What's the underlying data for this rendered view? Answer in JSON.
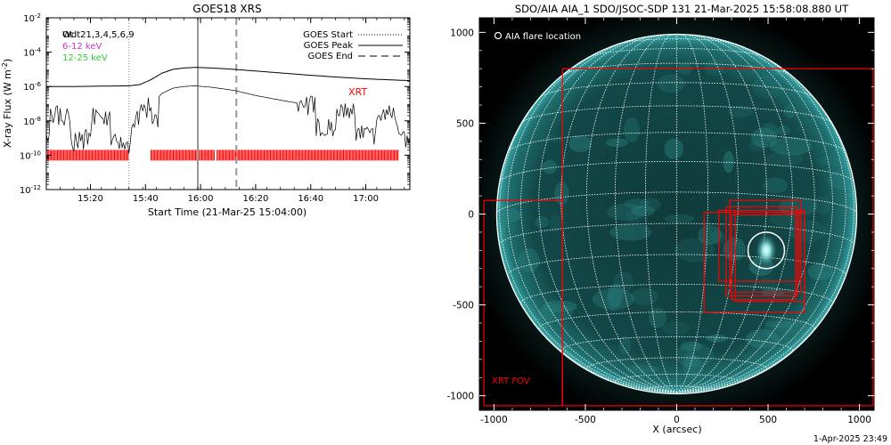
{
  "left_panel": {
    "title": "GOES18 XRS",
    "ylabel": "X-ray Flux (W m",
    "ylabel_sup": "-2",
    "ylabel_tail": ")",
    "xlabel": "Start Time (21-Mar-25 15:04:00)",
    "y_ticks": [
      {
        "base": "10",
        "exp": "-2"
      },
      {
        "base": "10",
        "exp": "-4"
      },
      {
        "base": "10",
        "exp": "-6"
      },
      {
        "base": "10",
        "exp": "-8"
      },
      {
        "base": "10",
        "exp": "-10"
      },
      {
        "base": "10",
        "exp": "-12"
      }
    ],
    "x_ticks": [
      "15:20",
      "15:40",
      "16:00",
      "16:20",
      "16:40",
      "17:00"
    ],
    "legend_left": [
      {
        "label": "Ot",
        "color": "#000000"
      },
      {
        "label": "6-12 keV",
        "color": "#cc33cc"
      },
      {
        "label": "12-25 keV",
        "color": "#33cc33"
      }
    ],
    "legend_overlap": "Wdt21,3,4,5,6,9",
    "legend_right": [
      {
        "label": "GOES Start",
        "style": "dotted"
      },
      {
        "label": "GOES Peak",
        "style": "solid"
      },
      {
        "label": "GOES End",
        "style": "dashed"
      }
    ],
    "xrt_label": "XRT",
    "xrt_color": "#ff0000"
  },
  "right_panel": {
    "title": "SDO/AIA AIA_1 SDO/JSOC-SDP 131 21-Mar-2025 15:58:08.880 UT",
    "legend_label": "AIA flare location",
    "xlabel": "X (arcsec)",
    "x_ticks": [
      "-1000",
      "-500",
      "0",
      "500",
      "1000"
    ],
    "y_ticks": [
      "1000",
      "500",
      "0",
      "-500",
      "-1000"
    ],
    "fov_label": "XRT FOV",
    "fov_color": "#ff0000"
  },
  "footer": {
    "timestamp": "1-Apr-2025 23:49"
  },
  "chart_data": [
    {
      "type": "line",
      "title": "GOES18 XRS",
      "xlabel": "Start Time (21-Mar-25 15:04:00)",
      "ylabel": "X-ray Flux (W m^-2)",
      "yscale": "log",
      "ylim": [
        1e-12,
        0.01
      ],
      "xlim": [
        "15:04",
        "17:16"
      ],
      "series": [
        {
          "name": "",
          "x": [
            "15:04",
            "15:14",
            "15:24",
            "15:34",
            "15:38",
            "15:42",
            "15:46",
            "15:50",
            "15:54",
            "15:58",
            "16:04",
            "16:12",
            "16:20",
            "16:30",
            "16:40",
            "16:50",
            "17:00",
            "17:10",
            "17:16"
          ],
          "values": [
            1e-06,
            1e-06,
            1.05e-06,
            1.1e-06,
            1.3e-06,
            2.5e-06,
            6e-06,
            1e-05,
            1.2e-05,
            1.3e-05,
            1.2e-05,
            1e-05,
            8e-06,
            6e-06,
            4.5e-06,
            3.5e-06,
            2.8e-06,
            2.4e-06,
            2.2e-06
          ]
        },
        {
          "name": "",
          "x": [
            "15:04",
            "15:14",
            "15:24",
            "15:34",
            "15:38",
            "15:42",
            "15:46",
            "15:50",
            "15:54",
            "15:58",
            "16:04",
            "16:12",
            "16:20",
            "16:30",
            "16:40",
            "16:50",
            "17:00",
            "17:10",
            "17:16"
          ],
          "values": [
            3e-08,
            1e-08,
            2e-08,
            5e-09,
            2e-08,
            8e-08,
            4e-07,
            8e-07,
            1e-06,
            1.1e-06,
            9e-07,
            6e-07,
            3e-07,
            1.5e-07,
            8e-08,
            4e-08,
            2.5e-08,
            2e-08,
            1.5e-08
          ]
        }
      ],
      "vertical_lines": [
        {
          "label": "GOES Start",
          "x": "15:34",
          "style": "dotted"
        },
        {
          "label": "GOES Peak",
          "x": "15:59",
          "style": "solid"
        },
        {
          "label": "GOES End",
          "x": "16:13",
          "style": "dashed"
        }
      ],
      "xrt_coverage": [
        {
          "start": "15:04",
          "end": "15:34"
        },
        {
          "start": "15:42",
          "end": "16:05"
        },
        {
          "start": "16:06",
          "end": "17:12"
        }
      ],
      "xrt_level": 1e-10
    },
    {
      "type": "image",
      "title": "SDO/AIA AIA_1 SDO/JSOC-SDP 131 21-Mar-2025 15:58:08.880 UT",
      "xlabel": "X (arcsec)",
      "xlim": [
        -1080,
        1080
      ],
      "ylim": [
        -1080,
        1080
      ],
      "solar_radius_arcsec": 985,
      "flare_location": {
        "x": 490,
        "y": -200,
        "r": 100
      },
      "xrt_fov": [
        {
          "x0": -1055,
          "x1": -625,
          "y0": -1055,
          "y1": 75
        },
        {
          "x0": -625,
          "x1": 1075,
          "y0": -1055,
          "y1": 800
        },
        {
          "x0": 290,
          "x1": 680,
          "y0": -430,
          "y1": 75
        },
        {
          "x0": 270,
          "x1": 660,
          "y0": -450,
          "y1": 40
        },
        {
          "x0": 320,
          "x1": 700,
          "y0": -480,
          "y1": 20
        },
        {
          "x0": 230,
          "x1": 670,
          "y0": -370,
          "y1": 20
        },
        {
          "x0": 300,
          "x1": 650,
          "y0": -470,
          "y1": -5
        },
        {
          "x0": 150,
          "x1": 700,
          "y0": -540,
          "y1": 10
        }
      ]
    }
  ]
}
